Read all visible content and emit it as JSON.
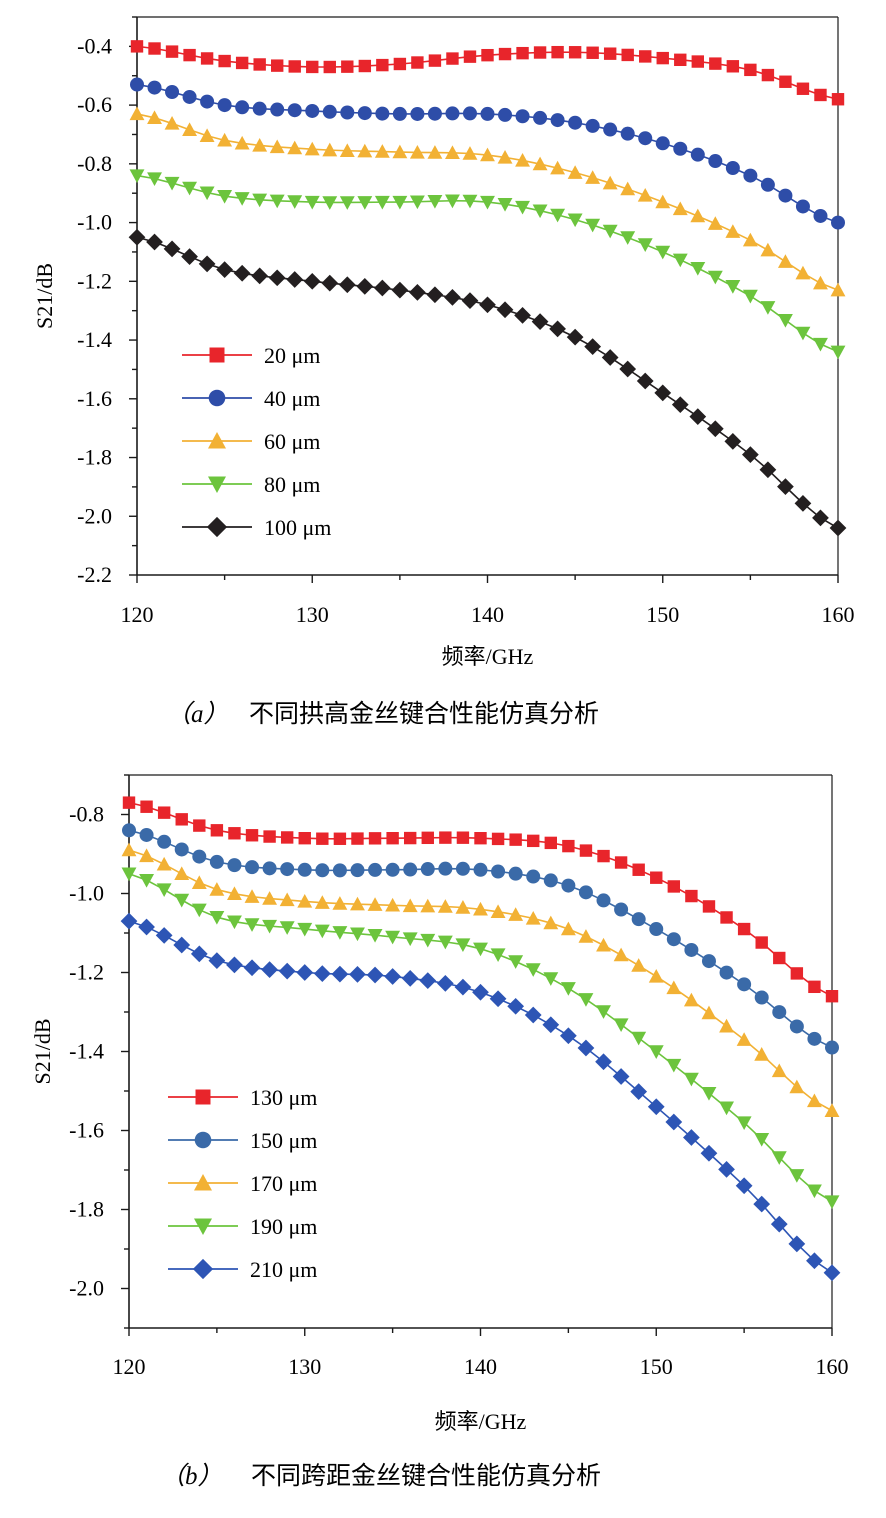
{
  "panels": [
    {
      "chart_data": {
        "type": "line",
        "xlabel": "频率/GHz",
        "ylabel": "S21/dB",
        "xlim": [
          120,
          160
        ],
        "ylim": [
          -2.2,
          -0.3
        ],
        "xticks": [
          120,
          130,
          140,
          150,
          160
        ],
        "yticks": [
          -2.2,
          -2.0,
          -1.8,
          -1.6,
          -1.4,
          -1.2,
          -1.0,
          -0.8,
          -0.6,
          -0.4
        ],
        "grid": false,
        "legend_position": "lower-left",
        "x": [
          120,
          160
        ],
        "series": [
          {
            "name": "20 μm",
            "color": "#e8252b",
            "marker": "square",
            "anchors": [
              [
                120,
                -0.4
              ],
              [
                125,
                -0.45
              ],
              [
                130,
                -0.47
              ],
              [
                135,
                -0.46
              ],
              [
                140,
                -0.43
              ],
              [
                145,
                -0.42
              ],
              [
                150,
                -0.44
              ],
              [
                155,
                -0.48
              ],
              [
                160,
                -0.58
              ]
            ]
          },
          {
            "name": "40 μm",
            "color": "#2e4da8",
            "marker": "circle",
            "anchors": [
              [
                120,
                -0.53
              ],
              [
                125,
                -0.6
              ],
              [
                130,
                -0.62
              ],
              [
                135,
                -0.63
              ],
              [
                140,
                -0.63
              ],
              [
                145,
                -0.66
              ],
              [
                150,
                -0.73
              ],
              [
                155,
                -0.84
              ],
              [
                160,
                -1.0
              ]
            ]
          },
          {
            "name": "60 μm",
            "color": "#f2b134",
            "marker": "triangle-up",
            "anchors": [
              [
                120,
                -0.63
              ],
              [
                125,
                -0.72
              ],
              [
                130,
                -0.75
              ],
              [
                135,
                -0.76
              ],
              [
                140,
                -0.77
              ],
              [
                145,
                -0.83
              ],
              [
                150,
                -0.93
              ],
              [
                155,
                -1.06
              ],
              [
                160,
                -1.23
              ]
            ]
          },
          {
            "name": "80 μm",
            "color": "#6cc43d",
            "marker": "triangle-down",
            "anchors": [
              [
                120,
                -0.84
              ],
              [
                125,
                -0.91
              ],
              [
                130,
                -0.93
              ],
              [
                135,
                -0.93
              ],
              [
                140,
                -0.93
              ],
              [
                145,
                -0.99
              ],
              [
                150,
                -1.1
              ],
              [
                155,
                -1.25
              ],
              [
                160,
                -1.44
              ]
            ]
          },
          {
            "name": "100 μm",
            "color": "#231f20",
            "marker": "diamond",
            "anchors": [
              [
                120,
                -1.05
              ],
              [
                125,
                -1.16
              ],
              [
                130,
                -1.2
              ],
              [
                135,
                -1.23
              ],
              [
                140,
                -1.28
              ],
              [
                145,
                -1.39
              ],
              [
                150,
                -1.58
              ],
              [
                155,
                -1.79
              ],
              [
                160,
                -2.04
              ]
            ]
          }
        ]
      },
      "caption_label": "（a）",
      "caption_text": "不同拱高金丝键合性能仿真分析"
    },
    {
      "chart_data": {
        "type": "line",
        "xlabel": "频率/GHz",
        "ylabel": "S21/dB",
        "xlim": [
          120,
          160
        ],
        "ylim": [
          -2.1,
          -0.7
        ],
        "xticks": [
          120,
          130,
          140,
          150,
          160
        ],
        "yticks": [
          -2.0,
          -1.8,
          -1.6,
          -1.4,
          -1.2,
          -1.0,
          -0.8
        ],
        "grid": false,
        "legend_position": "lower-left",
        "x": [
          120,
          160
        ],
        "series": [
          {
            "name": "130 μm",
            "color": "#e8252b",
            "marker": "square",
            "anchors": [
              [
                120,
                -0.77
              ],
              [
                125,
                -0.84
              ],
              [
                130,
                -0.86
              ],
              [
                135,
                -0.86
              ],
              [
                140,
                -0.86
              ],
              [
                145,
                -0.88
              ],
              [
                150,
                -0.96
              ],
              [
                155,
                -1.09
              ],
              [
                160,
                -1.26
              ]
            ]
          },
          {
            "name": "150 μm",
            "color": "#3a6aa8",
            "marker": "circle",
            "anchors": [
              [
                120,
                -0.84
              ],
              [
                125,
                -0.92
              ],
              [
                130,
                -0.94
              ],
              [
                135,
                -0.94
              ],
              [
                140,
                -0.94
              ],
              [
                145,
                -0.98
              ],
              [
                150,
                -1.09
              ],
              [
                155,
                -1.23
              ],
              [
                160,
                -1.39
              ]
            ]
          },
          {
            "name": "170 μm",
            "color": "#f2b134",
            "marker": "triangle-up",
            "anchors": [
              [
                120,
                -0.89
              ],
              [
                125,
                -0.99
              ],
              [
                130,
                -1.02
              ],
              [
                135,
                -1.03
              ],
              [
                140,
                -1.04
              ],
              [
                145,
                -1.09
              ],
              [
                150,
                -1.21
              ],
              [
                155,
                -1.37
              ],
              [
                160,
                -1.55
              ]
            ]
          },
          {
            "name": "190 μm",
            "color": "#6cc43d",
            "marker": "triangle-down",
            "anchors": [
              [
                120,
                -0.95
              ],
              [
                125,
                -1.06
              ],
              [
                130,
                -1.09
              ],
              [
                135,
                -1.11
              ],
              [
                140,
                -1.14
              ],
              [
                145,
                -1.24
              ],
              [
                150,
                -1.4
              ],
              [
                155,
                -1.58
              ],
              [
                160,
                -1.78
              ]
            ]
          },
          {
            "name": "210 μm",
            "color": "#2d55b5",
            "marker": "diamond",
            "anchors": [
              [
                120,
                -1.07
              ],
              [
                125,
                -1.17
              ],
              [
                130,
                -1.2
              ],
              [
                135,
                -1.21
              ],
              [
                140,
                -1.25
              ],
              [
                145,
                -1.36
              ],
              [
                150,
                -1.54
              ],
              [
                155,
                -1.74
              ],
              [
                160,
                -1.96
              ]
            ]
          }
        ]
      },
      "caption_label": "（b）",
      "caption_text": "不同跨距金丝键合性能仿真分析"
    }
  ]
}
